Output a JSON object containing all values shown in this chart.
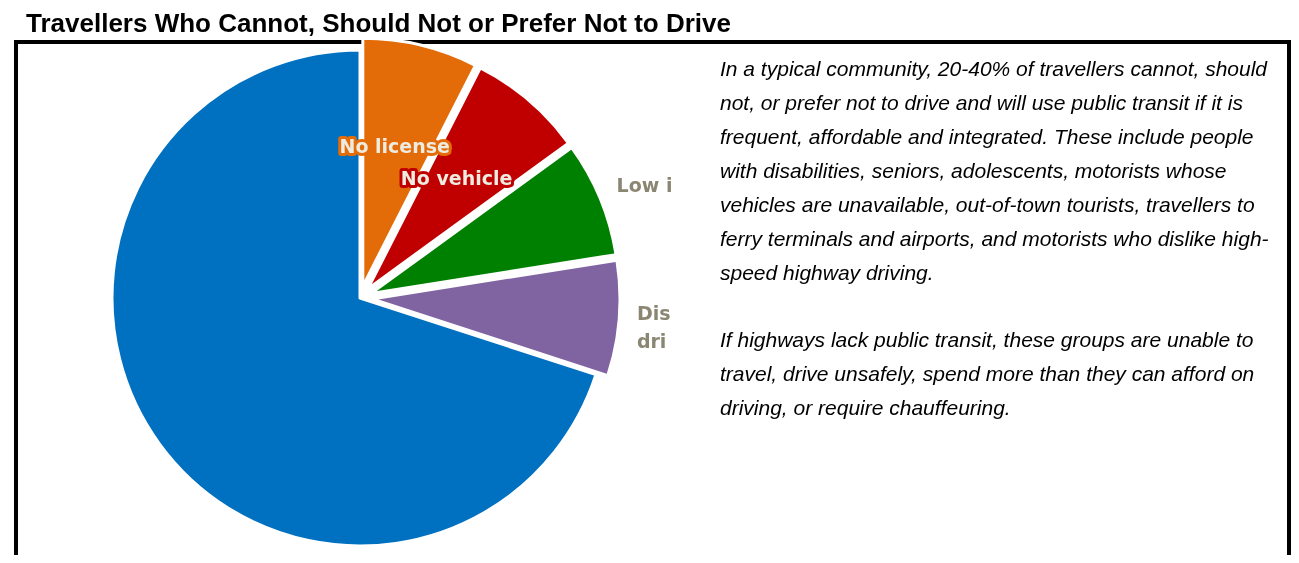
{
  "chart_data": {
    "type": "pie",
    "title": "Travellers Who Cannot, Should Not or Prefer Not to Drive",
    "categories": [
      "No license",
      "No vehicle",
      "Low i",
      "Dis\ndri",
      null
    ],
    "values": [
      7.5,
      7.5,
      7.5,
      7.5,
      70
    ],
    "colors": [
      "#e36c09",
      "#c00000",
      "#008000",
      "#8064a2",
      "#0070c0"
    ],
    "annotations": [
      "In a typical community, 20-40% of travellers cannot, should not, or prefer not to drive and will use public transit if it is frequent, affordable and integrated. These include people with disabilities, seniors, adolescents, motorists whose vehicles are unavailable, out-of-town tourists, travellers to ferry terminals and airports, and motorists who dislike high-speed highway driving.",
      "If highways lack public transit, these groups are unable to travel, drive unsafely, spend more than they can afford on driving, or require chauffeuring."
    ]
  }
}
